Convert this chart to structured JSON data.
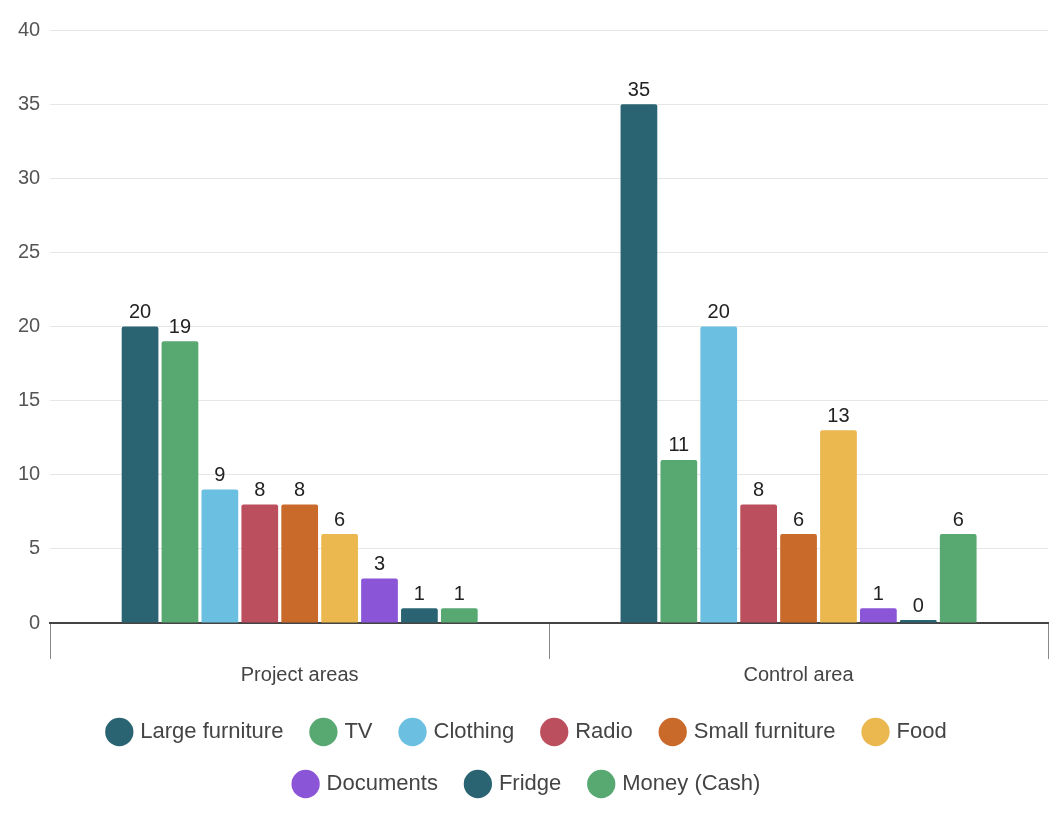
{
  "chart_data": {
    "type": "bar",
    "categories": [
      "Project areas",
      "Control area"
    ],
    "series": [
      {
        "name": "Large furniture",
        "color": "#2a6472",
        "values": [
          20,
          35
        ]
      },
      {
        "name": "TV",
        "color": "#58a872",
        "values": [
          19,
          11
        ]
      },
      {
        "name": "Clothing",
        "color": "#6bbfe0",
        "values": [
          9,
          20
        ]
      },
      {
        "name": "Radio",
        "color": "#bc4f5e",
        "values": [
          8,
          8
        ]
      },
      {
        "name": "Small furniture",
        "color": "#c96a2a",
        "values": [
          8,
          6
        ]
      },
      {
        "name": "Food",
        "color": "#eab84e",
        "values": [
          6,
          13
        ]
      },
      {
        "name": "Documents",
        "color": "#8a55d6",
        "values": [
          3,
          1
        ]
      },
      {
        "name": "Fridge",
        "color": "#2a6472",
        "values": [
          1,
          0
        ]
      },
      {
        "name": "Money (Cash)",
        "color": "#58a872",
        "values": [
          1,
          6
        ]
      }
    ],
    "ylim": [
      0,
      40
    ],
    "yticks": [
      0,
      5,
      10,
      15,
      20,
      25,
      30,
      35,
      40
    ],
    "grid": "y",
    "legend": "bottom",
    "data_labels": true
  }
}
